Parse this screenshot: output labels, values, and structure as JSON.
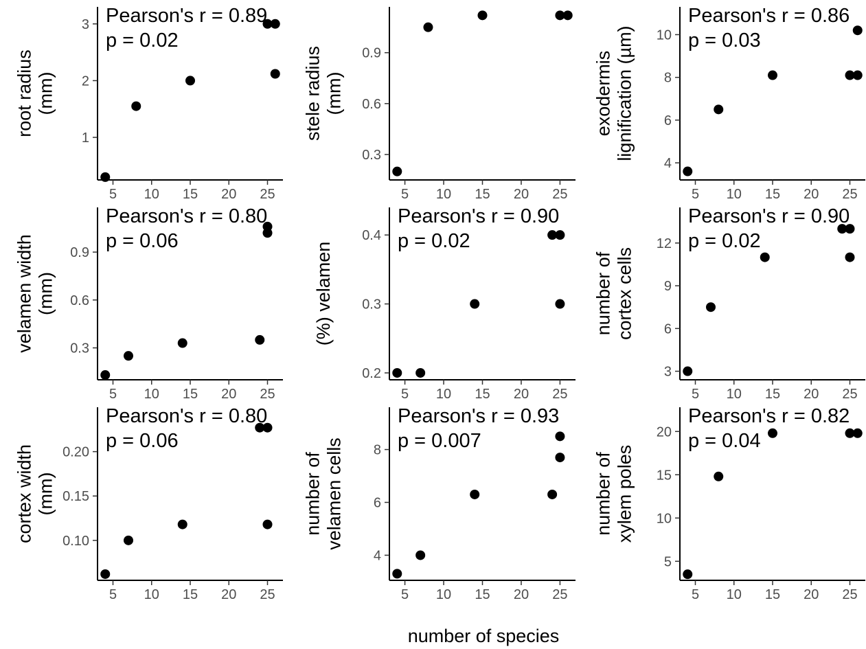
{
  "figure": {
    "xlabel": "number of species"
  },
  "chart_data": [
    {
      "type": "scatter",
      "ylabel": [
        "root radius",
        "(mm)"
      ],
      "annotation": [
        "Pearson's r = 0.89",
        "p = 0.02"
      ],
      "xlim": [
        3,
        27
      ],
      "ylim": [
        0.25,
        3.3
      ],
      "xticks": [
        5,
        10,
        15,
        20,
        25
      ],
      "xtick_labels": [
        "5",
        "10",
        "15",
        "20",
        "25"
      ],
      "yticks": [
        1,
        2,
        3
      ],
      "ytick_labels": [
        "1",
        "2",
        "3"
      ],
      "x": [
        4,
        8,
        15,
        25,
        26,
        26
      ],
      "y": [
        0.3,
        1.55,
        2.0,
        3.0,
        3.0,
        2.12
      ]
    },
    {
      "type": "scatter",
      "ylabel": [
        "stele radius",
        "(mm)"
      ],
      "annotation": [],
      "xlim": [
        3,
        27
      ],
      "ylim": [
        0.15,
        1.17
      ],
      "xticks": [
        5,
        10,
        15,
        20,
        25
      ],
      "xtick_labels": [
        "5",
        "10",
        "15",
        "20",
        "25"
      ],
      "yticks": [
        0.3,
        0.6,
        0.9
      ],
      "ytick_labels": [
        "0.3",
        "0.6",
        "0.9"
      ],
      "x": [
        4,
        8,
        15,
        25,
        26
      ],
      "y": [
        0.2,
        1.05,
        1.12,
        1.12,
        1.12
      ]
    },
    {
      "type": "scatter",
      "ylabel": [
        "exodermis",
        "lignification (µm)"
      ],
      "annotation": [
        "Pearson's r = 0.86",
        "p = 0.03"
      ],
      "xlim": [
        3,
        27
      ],
      "ylim": [
        3.2,
        11.3
      ],
      "xticks": [
        5,
        10,
        15,
        20,
        25
      ],
      "xtick_labels": [
        "5",
        "10",
        "15",
        "20",
        "25"
      ],
      "yticks": [
        4,
        6,
        8,
        10
      ],
      "ytick_labels": [
        "4",
        "6",
        "8",
        "10"
      ],
      "x": [
        4,
        8,
        15,
        25,
        26,
        26
      ],
      "y": [
        3.6,
        6.5,
        8.1,
        8.1,
        8.1,
        10.2
      ]
    },
    {
      "type": "scatter",
      "ylabel": [
        "velamen width",
        "(mm)"
      ],
      "annotation": [
        "Pearson's r = 0.80",
        "p = 0.06"
      ],
      "xlim": [
        3,
        27
      ],
      "ylim": [
        0.1,
        1.18
      ],
      "xticks": [
        5,
        10,
        15,
        20,
        25
      ],
      "xtick_labels": [
        "5",
        "10",
        "15",
        "20",
        "25"
      ],
      "yticks": [
        0.3,
        0.6,
        0.9
      ],
      "ytick_labels": [
        "0.3",
        "0.6",
        "0.9"
      ],
      "x": [
        4,
        7,
        14,
        24,
        25,
        25
      ],
      "y": [
        0.13,
        0.25,
        0.33,
        0.35,
        1.02,
        1.06
      ]
    },
    {
      "type": "scatter",
      "ylabel": [
        "(%) velamen"
      ],
      "annotation": [
        "Pearson's r = 0.90",
        "p = 0.02"
      ],
      "xlim": [
        3,
        27
      ],
      "ylim": [
        0.19,
        0.44
      ],
      "xticks": [
        5,
        10,
        15,
        20,
        25
      ],
      "xtick_labels": [
        "5",
        "10",
        "15",
        "20",
        "25"
      ],
      "yticks": [
        0.2,
        0.3,
        0.4
      ],
      "ytick_labels": [
        "0.2",
        "0.3",
        "0.4"
      ],
      "x": [
        4,
        7,
        14,
        24,
        25,
        25
      ],
      "y": [
        0.2,
        0.2,
        0.3,
        0.4,
        0.4,
        0.3
      ]
    },
    {
      "type": "scatter",
      "ylabel": [
        "number of",
        "cortex cells"
      ],
      "annotation": [
        "Pearson's r = 0.90",
        "p = 0.02"
      ],
      "xlim": [
        3,
        27
      ],
      "ylim": [
        2.4,
        14.5
      ],
      "xticks": [
        5,
        10,
        15,
        20,
        25
      ],
      "xtick_labels": [
        "5",
        "10",
        "15",
        "20",
        "25"
      ],
      "yticks": [
        3,
        6,
        9,
        12
      ],
      "ytick_labels": [
        "3",
        "6",
        "9",
        "12"
      ],
      "x": [
        4,
        7,
        14,
        24,
        25,
        25
      ],
      "y": [
        3,
        7.5,
        11,
        13,
        13,
        11
      ]
    },
    {
      "type": "scatter",
      "ylabel": [
        "cortex width",
        "(mm)"
      ],
      "annotation": [
        "Pearson's r = 0.80",
        "p = 0.06"
      ],
      "xlim": [
        3,
        27
      ],
      "ylim": [
        0.055,
        0.25
      ],
      "xticks": [
        5,
        10,
        15,
        20,
        25
      ],
      "xtick_labels": [
        "5",
        "10",
        "15",
        "20",
        "25"
      ],
      "yticks": [
        0.1,
        0.15,
        0.2
      ],
      "ytick_labels": [
        "0.10",
        "0.15",
        "0.20"
      ],
      "x": [
        4,
        7,
        14,
        24,
        25,
        25
      ],
      "y": [
        0.062,
        0.1,
        0.118,
        0.227,
        0.227,
        0.118
      ]
    },
    {
      "type": "scatter",
      "ylabel": [
        "number of",
        "velamen cells"
      ],
      "annotation": [
        "Pearson's r = 0.93",
        "p = 0.007"
      ],
      "xlim": [
        3,
        27
      ],
      "ylim": [
        3.05,
        9.6
      ],
      "xticks": [
        5,
        10,
        15,
        20,
        25
      ],
      "xtick_labels": [
        "5",
        "10",
        "15",
        "20",
        "25"
      ],
      "yticks": [
        4,
        6,
        8
      ],
      "ytick_labels": [
        "4",
        "6",
        "8"
      ],
      "x": [
        4,
        7,
        14,
        24,
        25,
        25
      ],
      "y": [
        3.3,
        4.0,
        6.3,
        6.3,
        7.7,
        8.5
      ]
    },
    {
      "type": "scatter",
      "ylabel": [
        "number of",
        "xylem poles"
      ],
      "annotation": [
        "Pearson's r = 0.82",
        "p = 0.04"
      ],
      "xlim": [
        3,
        27
      ],
      "ylim": [
        2.8,
        22.8
      ],
      "xticks": [
        5,
        10,
        15,
        20,
        25
      ],
      "xtick_labels": [
        "5",
        "10",
        "15",
        "20",
        "25"
      ],
      "yticks": [
        5,
        10,
        15,
        20
      ],
      "ytick_labels": [
        "5",
        "10",
        "15",
        "20"
      ],
      "x": [
        4,
        8,
        15,
        25,
        26
      ],
      "y": [
        3.5,
        14.8,
        19.8,
        19.8,
        19.8
      ]
    }
  ]
}
